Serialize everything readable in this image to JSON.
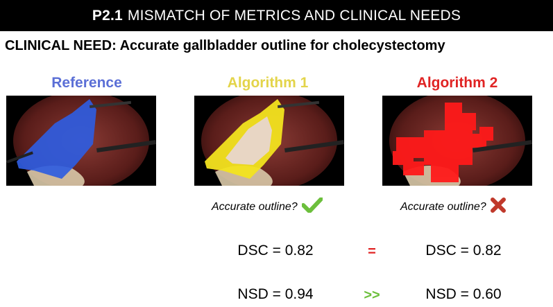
{
  "header": {
    "prefix": "P2.1",
    "title": "MISMATCH OF METRICS AND CLINICAL NEEDS"
  },
  "need": {
    "label": "CLINICAL NEED:",
    "text": "Accurate gallbladder outline for cholecystectomy"
  },
  "columns": [
    {
      "label": "Reference",
      "color": "#5b6fd6"
    },
    {
      "label": "Algorithm 1",
      "color": "#e3d44a"
    },
    {
      "label": "Algorithm 2",
      "color": "#e02424"
    }
  ],
  "questions": [
    {
      "text": "Accurate outline?",
      "icon": "check-icon",
      "icon_color": "#6cbf3c"
    },
    {
      "text": "Accurate outline?",
      "icon": "cross-icon",
      "icon_color": "#c0392b"
    }
  ],
  "metrics": {
    "dsc_left": "DSC = 0.82",
    "dsc_op": "=",
    "dsc_right": "DSC = 0.82",
    "nsd_left": "NSD = 0.94",
    "nsd_op": ">>",
    "nsd_right": "NSD = 0.60",
    "dsc_op_color": "#e02424",
    "nsd_op_color": "#6cbf3c"
  }
}
